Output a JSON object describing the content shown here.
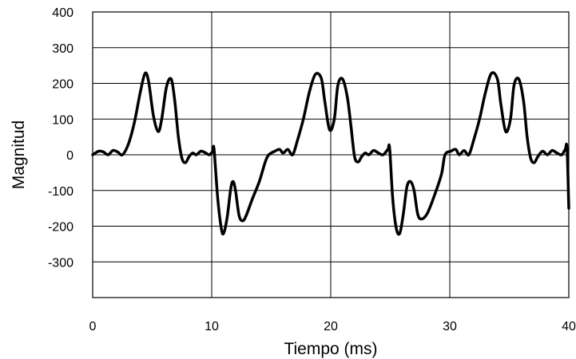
{
  "chart_data": {
    "type": "line",
    "title": "",
    "xlabel": "Tiempo (ms)",
    "ylabel": "Magnitud",
    "xlim": [
      0,
      40
    ],
    "ylim": [
      -400,
      400
    ],
    "grid": true,
    "x_ticks": [
      "0",
      "10",
      "20",
      "30",
      "40"
    ],
    "y_ticks": [
      "400",
      "300",
      "200",
      "100",
      "0",
      "-100",
      "-200",
      "-300"
    ],
    "line_color": "#000000",
    "grid_color": "#000000",
    "series": [
      {
        "x": [
          0,
          0.5,
          0.9,
          1.3,
          1.7,
          2.1,
          2.5,
          3.0,
          3.5,
          4.0,
          4.4,
          4.7,
          5.1,
          5.5,
          5.8,
          6.2,
          6.6,
          6.9,
          7.2,
          7.5,
          7.8,
          8.1,
          8.4,
          8.7,
          9.1,
          9.5,
          9.8,
          10.1,
          10.2,
          10.5,
          10.8,
          11.0,
          11.3,
          11.6,
          11.8,
          12.0,
          12.3,
          12.6,
          12.9,
          13.4,
          14.0,
          14.5,
          14.8,
          15.3,
          15.7,
          16.0,
          16.4,
          16.8,
          17.2,
          17.7,
          18.2,
          18.7,
          19.2,
          19.5,
          19.9,
          20.3,
          20.6,
          21.0,
          21.4,
          21.7,
          22.0,
          22.3,
          22.6,
          22.9,
          23.2,
          23.6,
          24.0,
          24.4,
          24.8,
          24.95,
          25.2,
          25.5,
          25.8,
          26.1,
          26.4,
          26.7,
          27.0,
          27.3,
          27.6,
          28.1,
          28.7,
          29.3,
          29.6,
          30.1,
          30.5,
          30.8,
          31.2,
          31.6,
          32.0,
          32.5,
          33.0,
          33.5,
          34.0,
          34.3,
          34.7,
          35.1,
          35.4,
          35.8,
          36.2,
          36.5,
          36.8,
          37.1,
          37.4,
          37.8,
          38.2,
          38.6,
          39.0,
          39.4,
          39.7,
          39.85,
          40.0
        ],
        "values": [
          0,
          10,
          8,
          0,
          12,
          8,
          0,
          30,
          90,
          175,
          228,
          205,
          110,
          65,
          100,
          190,
          212,
          150,
          50,
          -10,
          -22,
          -5,
          5,
          0,
          10,
          5,
          0,
          10,
          15,
          -120,
          -205,
          -220,
          -175,
          -95,
          -75,
          -100,
          -170,
          -185,
          -170,
          -125,
          -75,
          -20,
          0,
          10,
          15,
          5,
          15,
          0,
          40,
          100,
          175,
          225,
          215,
          150,
          70,
          100,
          195,
          212,
          160,
          80,
          -5,
          -20,
          -5,
          5,
          0,
          12,
          5,
          0,
          15,
          18,
          -120,
          -205,
          -220,
          -165,
          -90,
          -75,
          -100,
          -165,
          -180,
          -165,
          -115,
          -55,
          0,
          10,
          15,
          0,
          12,
          0,
          40,
          100,
          175,
          228,
          212,
          140,
          65,
          100,
          195,
          212,
          150,
          50,
          -10,
          -22,
          -5,
          10,
          0,
          12,
          5,
          0,
          15,
          18,
          -150
        ]
      }
    ]
  }
}
